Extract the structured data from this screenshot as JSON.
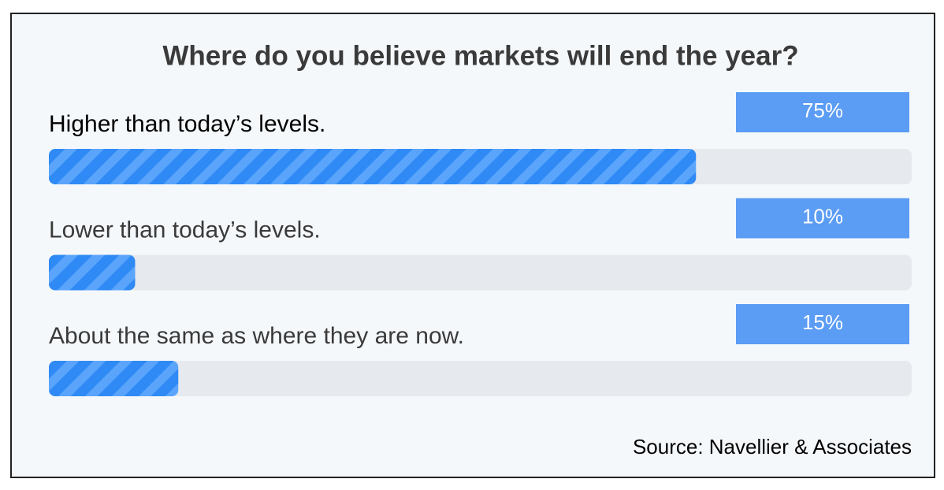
{
  "chart_data": {
    "type": "bar",
    "orientation": "horizontal",
    "title": "Where do you believe markets will end the year?",
    "categories": [
      "Higher than today’s levels.",
      "Lower than today’s levels.",
      "About the same as where they are now."
    ],
    "values": [
      75,
      10,
      15
    ],
    "value_labels": [
      "75%",
      "10%",
      "15%"
    ],
    "color": "#2f8af5",
    "xlim": [
      0,
      100
    ],
    "source": "Source: Navellier & Associates"
  }
}
